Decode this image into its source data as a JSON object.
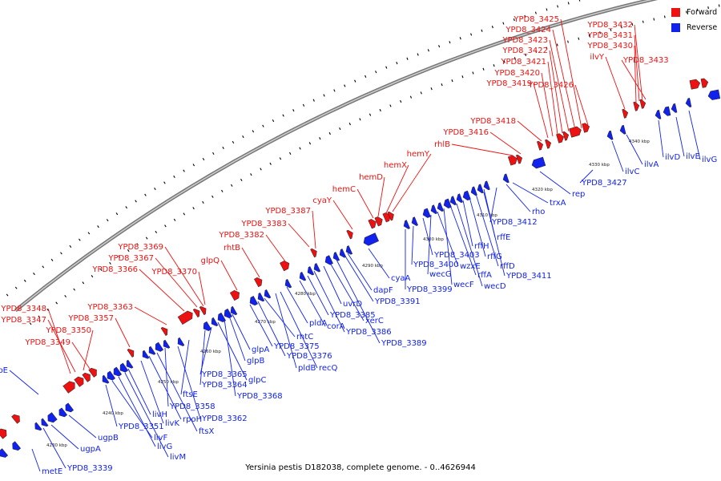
{
  "legend": {
    "forward_label": "Forward",
    "reverse_label": "Reverse",
    "forward_color": "#ee1111",
    "reverse_color": "#1122ee"
  },
  "caption": "Yersinia pestis D182038, complete genome. - 0..4626944",
  "kbp_ticks": [
    "4230 kbp",
    "4240 kbp",
    "4250 kbp",
    "4260 kbp",
    "4270 kbp",
    "4280 kbp",
    "4290 kbp",
    "4300 kbp",
    "4310 kbp",
    "4320 kbp",
    "4330 kbp",
    "4340 kbp"
  ],
  "forward_genes": [
    "YPD8_3348",
    "YPD8_3347",
    "YPD8_3350",
    "YPD8_3349",
    "YPD8_3363",
    "YPD8_3357",
    "YPD8_3366",
    "YPD8_3367",
    "YPD8_3369",
    "YPD8_3370",
    "glpQ",
    "rhtB",
    "YPD8_3382",
    "YPD8_3383",
    "YPD8_3387",
    "cyaY",
    "hemC",
    "hemD",
    "hemX",
    "hemY",
    "rhlB",
    "YPD8_3416",
    "YPD8_3418",
    "YPD8_3419",
    "YPD8_3420",
    "YPD8_3421",
    "YPD8_3422",
    "YPD8_3423",
    "YPD8_3424",
    "YPD8_3425",
    "YPD8_3426",
    "ilvY",
    "YPD8_3430",
    "YPD8_3431",
    "YPD8_3432",
    "YPD8_3433"
  ],
  "reverse_genes": [
    "ugpE",
    "metE",
    "YPD8_3339",
    "ugpA",
    "ugpB",
    "YPD8_3351",
    "livF",
    "livG",
    "livM",
    "livH",
    "livK",
    "rpoH",
    "ftsX",
    "YPD8_3358",
    "YPD8_3362",
    "ftsE",
    "YPD8_3364",
    "YPD8_3365",
    "glpC",
    "YPD8_3368",
    "glpB",
    "glpA",
    "YPD8_3375",
    "YPD8_3376",
    "rhtC",
    "pldB",
    "recQ",
    "pldA",
    "corA",
    "YPD8_3385",
    "YPD8_3386",
    "uvrD",
    "xerC",
    "YPD8_3389",
    "YPD8_3391",
    "dapF",
    "cyaA",
    "YPD8_3399",
    "YPD8_3400",
    "YPD8_3403",
    "wecG",
    "wzxE",
    "wecF",
    "rffA",
    "wecD",
    "rffH",
    "rffG",
    "rffD",
    "YPD8_3411",
    "rffE",
    "YPD8_3412",
    "rho",
    "trxA",
    "rep",
    "YPD8_3427",
    "ilvC",
    "ilvA",
    "ilvD",
    "ilvE",
    "ilvG"
  ]
}
